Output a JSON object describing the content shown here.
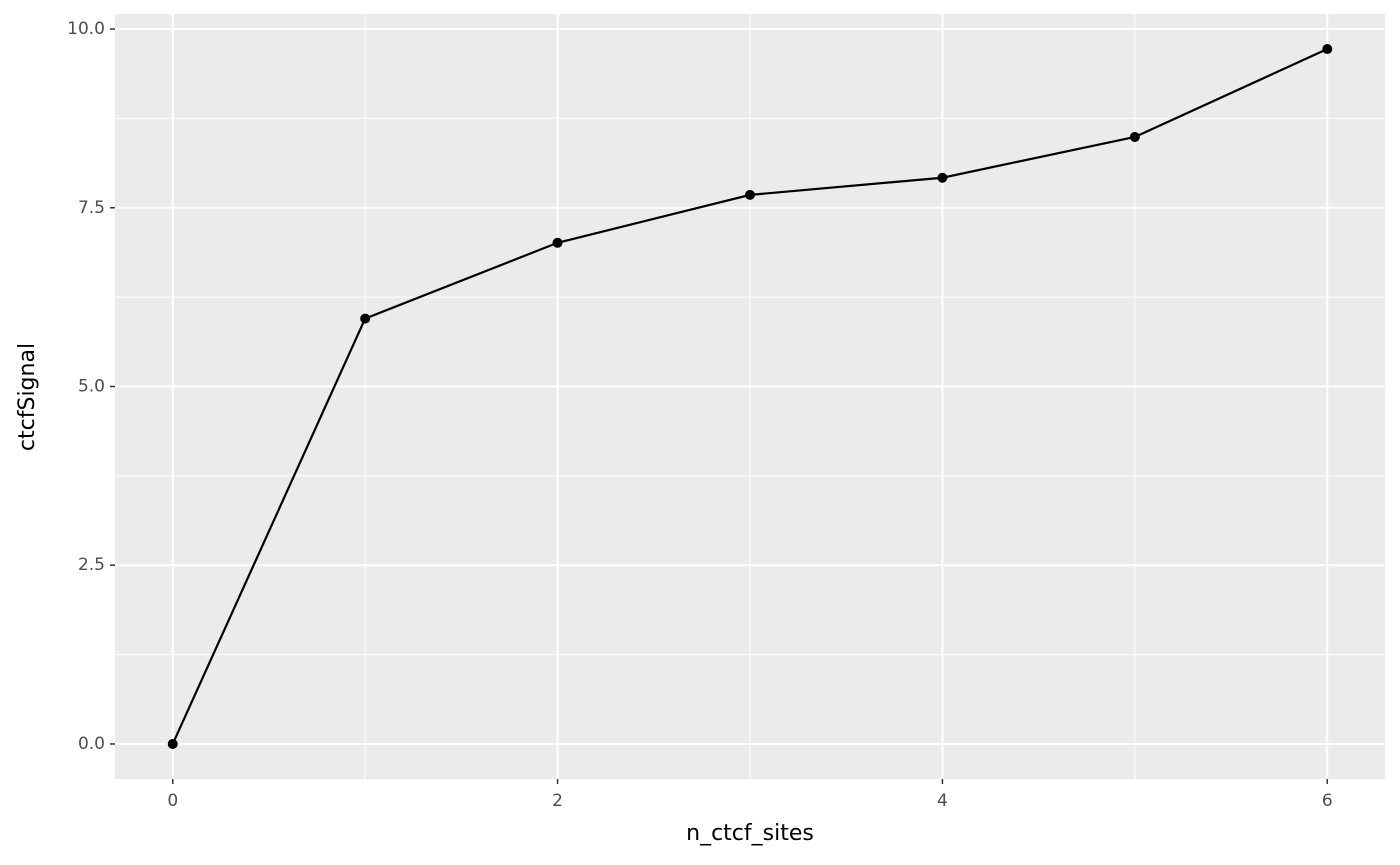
{
  "chart_data": {
    "type": "line",
    "x_label": "n_ctcf_sites",
    "y_label": "ctcfSignal",
    "x": [
      0,
      1,
      2,
      3,
      4,
      5,
      6
    ],
    "series": [
      {
        "color": "#000000",
        "values": [
          0,
          5.95,
          7.01,
          7.68,
          7.92,
          8.49,
          9.72
        ]
      }
    ],
    "xlim": [
      -0.3,
      6.3
    ],
    "ylim": [
      -0.49,
      10.21
    ],
    "xticks": [
      0,
      2,
      4,
      6
    ],
    "yticks": [
      {
        "value": 0,
        "label": "0.0"
      },
      2.5,
      {
        "value": 5,
        "label": "5.0"
      },
      7.5,
      {
        "value": 10,
        "label": "10.0"
      }
    ],
    "minor_xticks": [
      1,
      3,
      5
    ],
    "minor_yticks": [
      1.25,
      3.75,
      6.25,
      8.75
    ],
    "grid": true,
    "panel_color": "#ebebeb"
  }
}
